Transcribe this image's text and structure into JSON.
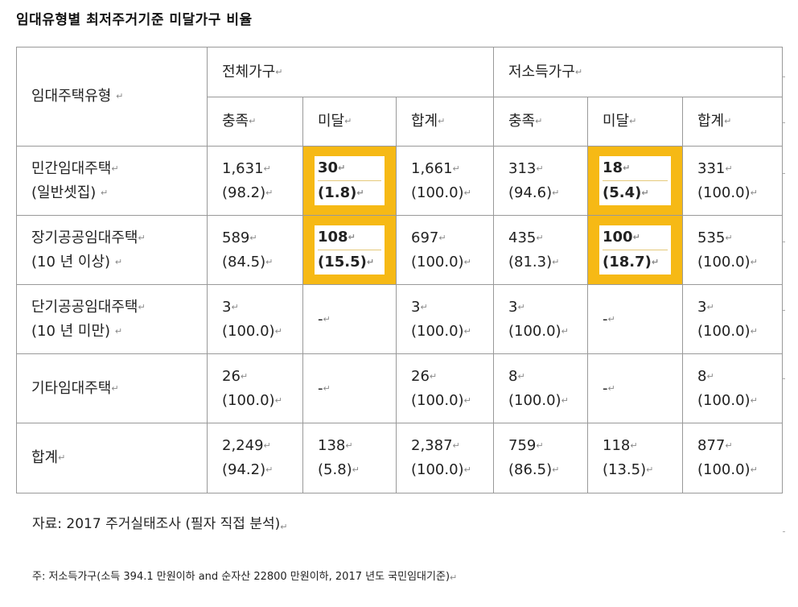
{
  "title": "임대유형별 최저주거기준 미달가구 비율",
  "table": {
    "row_header": "임대주택유형",
    "groups": [
      "전체가구",
      "저소득가구"
    ],
    "subheaders": [
      "충족",
      "미달",
      "합계",
      "충족",
      "미달",
      "합계"
    ],
    "rows": [
      {
        "type_line1": "민간임대주택",
        "type_line2": "(일반셋집)",
        "cells": [
          [
            "1,631",
            "(98.2)"
          ],
          [
            "30",
            "(1.8)"
          ],
          [
            "1,661",
            "(100.0)"
          ],
          [
            "313",
            "(94.6)"
          ],
          [
            "18",
            "(5.4)"
          ],
          [
            "331",
            "(100.0)"
          ]
        ]
      },
      {
        "type_line1": "장기공공임대주택",
        "type_line2": "(10 년 이상)",
        "cells": [
          [
            "589",
            "(84.5)"
          ],
          [
            "108",
            "(15.5)"
          ],
          [
            "697",
            "(100.0)"
          ],
          [
            "435",
            "(81.3)"
          ],
          [
            "100",
            "(18.7)"
          ],
          [
            "535",
            "(100.0)"
          ]
        ]
      },
      {
        "type_line1": "단기공공임대주택",
        "type_line2": "(10 년 미만)",
        "cells": [
          [
            "3",
            "(100.0)"
          ],
          [
            "-",
            ""
          ],
          [
            "3",
            "(100.0)"
          ],
          [
            "3",
            "(100.0)"
          ],
          [
            "-",
            ""
          ],
          [
            "3",
            "(100.0)"
          ]
        ]
      },
      {
        "type_line1": "기타임대주택",
        "type_line2": "",
        "cells": [
          [
            "26",
            "(100.0)"
          ],
          [
            "-",
            ""
          ],
          [
            "26",
            "(100.0)"
          ],
          [
            "8",
            "(100.0)"
          ],
          [
            "-",
            ""
          ],
          [
            "8",
            "(100.0)"
          ]
        ]
      },
      {
        "type_line1": "합계",
        "type_line2": "",
        "cells": [
          [
            "2,249",
            "(94.2)"
          ],
          [
            "138",
            "(5.8)"
          ],
          [
            "2,387",
            "(100.0)"
          ],
          [
            "759",
            "(86.5)"
          ],
          [
            "118",
            "(13.5)"
          ],
          [
            "877",
            "(100.0)"
          ]
        ]
      }
    ],
    "highlight_color": "#f6b915"
  },
  "source": "자료: 2017 주거실태조사 (필자 직접 분석)",
  "note": "주: 저소득가구(소득 394.1 만원이하 and 순자산 22800 만원이하, 2017 년도 국민임대기준)"
}
